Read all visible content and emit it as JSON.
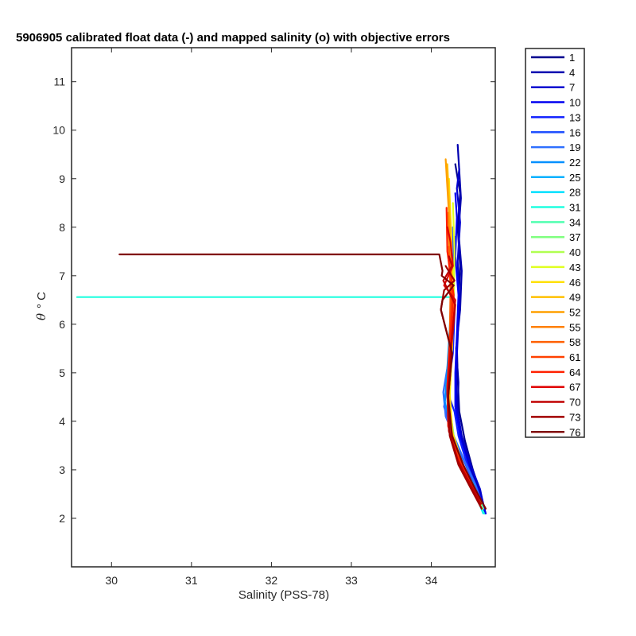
{
  "chart_data": {
    "type": "line",
    "title": "5906905 calibrated float data (-) and mapped salinity (o) with objective errors",
    "xlabel": "Salinity (PSS-78)",
    "ylabel_symbol": "θ",
    "ylabel_unit": "° C",
    "xlim": [
      29.5,
      34.8
    ],
    "ylim": [
      1,
      11.7
    ],
    "xticks": [
      30,
      31,
      32,
      33,
      34
    ],
    "yticks": [
      2,
      3,
      4,
      5,
      6,
      7,
      8,
      9,
      10,
      11
    ],
    "grid": false,
    "legend_position": "outside-right",
    "legend": [
      "1",
      "4",
      "7",
      "10",
      "13",
      "16",
      "19",
      "22",
      "25",
      "28",
      "31",
      "34",
      "37",
      "40",
      "43",
      "46",
      "49",
      "52",
      "55",
      "58",
      "61",
      "64",
      "67",
      "70",
      "73",
      "76"
    ],
    "colors": [
      "#00008f",
      "#0000b0",
      "#0000d0",
      "#0000f0",
      "#0f1fff",
      "#1f4fff",
      "#2f6fff",
      "#0090ff",
      "#00b0ff",
      "#00e0ff",
      "#20ffe0",
      "#50ffb0",
      "#80ff80",
      "#b0ff50",
      "#e0ff20",
      "#ffe000",
      "#ffc000",
      "#ffa000",
      "#ff8000",
      "#ff6000",
      "#ff4000",
      "#ff2000",
      "#e00000",
      "#c00000",
      "#a00000",
      "#800000"
    ],
    "series": [
      {
        "name": "1",
        "x": [
          34.68,
          34.62,
          34.52,
          34.42,
          34.35,
          34.33,
          34.32,
          34.34,
          34.36,
          34.33,
          34.36,
          34.3
        ],
        "y": [
          2.1,
          2.5,
          3.0,
          3.6,
          4.2,
          4.9,
          5.6,
          6.4,
          7.2,
          8.0,
          8.7,
          9.3
        ]
      },
      {
        "name": "4",
        "x": [
          34.67,
          34.6,
          34.5,
          34.4,
          34.33,
          34.34,
          34.31,
          34.36,
          34.38,
          34.34,
          34.37,
          34.33
        ],
        "y": [
          2.1,
          2.5,
          3.0,
          3.5,
          4.1,
          4.8,
          5.5,
          6.3,
          7.1,
          7.9,
          8.6,
          9.7
        ]
      },
      {
        "name": "7",
        "x": [
          34.66,
          34.61,
          34.49,
          34.38,
          34.32,
          34.31,
          34.33,
          34.35,
          34.33,
          34.36,
          34.32,
          34.35
        ],
        "y": [
          2.2,
          2.6,
          3.1,
          3.7,
          4.3,
          5.0,
          5.7,
          6.5,
          7.3,
          8.1,
          8.8,
          9.2
        ]
      },
      {
        "name": "10",
        "x": [
          34.68,
          34.59,
          34.48,
          34.37,
          34.3,
          34.3,
          34.32,
          34.34,
          34.3,
          34.32,
          34.3
        ],
        "y": [
          2.1,
          2.5,
          3.0,
          3.6,
          4.3,
          5.0,
          5.8,
          6.6,
          7.4,
          8.2,
          8.7
        ]
      },
      {
        "name": "13",
        "x": [
          34.65,
          34.58,
          34.45,
          34.34,
          34.29,
          34.2,
          34.27,
          34.29,
          34.27,
          34.3
        ],
        "y": [
          2.2,
          2.6,
          3.1,
          3.7,
          4.2,
          4.6,
          5.4,
          6.2,
          7.0,
          7.8
        ]
      },
      {
        "name": "16",
        "x": [
          34.64,
          34.56,
          34.43,
          34.3,
          34.16,
          34.22,
          34.25,
          34.27,
          34.28,
          34.27
        ],
        "y": [
          2.2,
          2.6,
          3.1,
          3.6,
          4.3,
          5.0,
          5.7,
          6.4,
          7.2,
          8.0
        ]
      },
      {
        "name": "19",
        "x": [
          34.63,
          34.55,
          34.41,
          34.28,
          34.18,
          34.15,
          34.23,
          34.26,
          34.27
        ],
        "y": [
          2.3,
          2.7,
          3.2,
          3.7,
          4.1,
          4.6,
          5.4,
          6.3,
          7.2
        ]
      },
      {
        "name": "22",
        "x": [
          34.64,
          34.54,
          34.4,
          34.27,
          34.17,
          34.2,
          34.23,
          34.25
        ],
        "y": [
          2.2,
          2.6,
          3.1,
          3.7,
          4.4,
          5.1,
          5.9,
          6.7
        ]
      },
      {
        "name": "25",
        "x": [
          34.63,
          34.53,
          34.38,
          34.26,
          34.2,
          34.22,
          34.24,
          34.26
        ],
        "y": [
          2.2,
          2.7,
          3.1,
          3.7,
          4.4,
          5.2,
          6.0,
          6.7
        ]
      },
      {
        "name": "28",
        "x": [
          34.65,
          34.55,
          34.4,
          34.28,
          34.21,
          34.22,
          34.24,
          34.25
        ],
        "y": [
          2.1,
          2.5,
          3.0,
          3.6,
          4.3,
          5.1,
          5.9,
          6.6
        ]
      },
      {
        "name": "31",
        "x": [
          34.66,
          34.55,
          34.4,
          34.28,
          34.21,
          34.22,
          34.24,
          34.25,
          34.26,
          29.57
        ],
        "y": [
          2.1,
          2.5,
          3.0,
          3.6,
          4.3,
          5.1,
          5.9,
          6.5,
          6.56,
          6.56
        ]
      },
      {
        "name": "34",
        "x": [
          34.65,
          34.54,
          34.39,
          34.28,
          34.22,
          34.23,
          34.25
        ],
        "y": [
          2.2,
          2.6,
          3.1,
          3.7,
          4.4,
          5.2,
          6.0
        ]
      },
      {
        "name": "37",
        "x": [
          34.64,
          34.53,
          34.39,
          34.28,
          34.22,
          34.24,
          34.26
        ],
        "y": [
          2.2,
          2.6,
          3.1,
          3.7,
          4.4,
          5.3,
          6.1
        ]
      },
      {
        "name": "40",
        "x": [
          34.63,
          34.52,
          34.38,
          34.27,
          34.22,
          34.25,
          34.27,
          34.28
        ],
        "y": [
          2.2,
          2.6,
          3.1,
          3.7,
          4.4,
          5.3,
          6.3,
          7.2
        ]
      },
      {
        "name": "43",
        "x": [
          34.63,
          34.52,
          34.38,
          34.27,
          34.23,
          34.26,
          34.28,
          34.29,
          34.27
        ],
        "y": [
          2.2,
          2.6,
          3.1,
          3.7,
          4.5,
          5.5,
          6.5,
          7.5,
          8.5
        ]
      },
      {
        "name": "46",
        "x": [
          34.62,
          34.51,
          34.37,
          34.26,
          34.23,
          34.26,
          34.27,
          34.25,
          34.22
        ],
        "y": [
          2.3,
          2.7,
          3.2,
          3.8,
          4.6,
          5.6,
          6.6,
          7.8,
          9.0
        ]
      },
      {
        "name": "49",
        "x": [
          34.62,
          34.5,
          34.36,
          34.25,
          34.22,
          34.25,
          34.26,
          34.24,
          34.2
        ],
        "y": [
          2.3,
          2.7,
          3.2,
          3.8,
          4.6,
          5.6,
          6.7,
          7.9,
          9.3
        ]
      },
      {
        "name": "52",
        "x": [
          34.61,
          34.49,
          34.35,
          34.24,
          34.21,
          34.24,
          34.25,
          34.23,
          34.18
        ],
        "y": [
          2.3,
          2.7,
          3.2,
          3.8,
          4.7,
          5.7,
          6.8,
          8.0,
          9.4
        ]
      },
      {
        "name": "55",
        "x": [
          34.62,
          34.49,
          34.34,
          34.23,
          34.21,
          34.24,
          34.24,
          34.22,
          34.21
        ],
        "y": [
          2.3,
          2.7,
          3.2,
          3.8,
          4.7,
          5.7,
          6.8,
          7.8,
          8.3
        ]
      },
      {
        "name": "58",
        "x": [
          34.6,
          34.48,
          34.33,
          34.22,
          34.2,
          34.23,
          34.24,
          34.22
        ],
        "y": [
          2.4,
          2.8,
          3.3,
          3.9,
          4.7,
          5.7,
          6.7,
          7.6
        ]
      },
      {
        "name": "61",
        "x": [
          34.59,
          34.47,
          34.33,
          34.22,
          34.2,
          34.23,
          34.26,
          34.21
        ],
        "y": [
          2.4,
          2.8,
          3.3,
          3.9,
          4.7,
          5.6,
          6.6,
          7.4
        ]
      },
      {
        "name": "64",
        "x": [
          34.6,
          34.47,
          34.32,
          34.21,
          34.2,
          34.23,
          34.28,
          34.2,
          34.19
        ],
        "y": [
          2.4,
          2.8,
          3.3,
          3.9,
          4.7,
          5.6,
          6.6,
          7.5,
          8.4
        ]
      },
      {
        "name": "67",
        "x": [
          34.61,
          34.48,
          34.33,
          34.22,
          34.2,
          34.24,
          34.3,
          34.16,
          34.27,
          34.24,
          34.2
        ],
        "y": [
          2.3,
          2.7,
          3.2,
          3.8,
          4.6,
          5.5,
          6.5,
          6.8,
          7.2,
          7.7,
          8.0
        ]
      },
      {
        "name": "70",
        "x": [
          34.62,
          34.49,
          34.33,
          34.22,
          34.21,
          34.25,
          34.3,
          34.15,
          34.26,
          34.22
        ],
        "y": [
          2.3,
          2.7,
          3.2,
          3.8,
          4.6,
          5.5,
          6.4,
          6.9,
          7.2,
          7.4
        ]
      },
      {
        "name": "73",
        "x": [
          34.63,
          34.5,
          34.34,
          34.23,
          34.21,
          34.26,
          34.12,
          34.16,
          34.29,
          34.18
        ],
        "y": [
          2.2,
          2.6,
          3.1,
          3.7,
          4.5,
          5.4,
          6.3,
          6.7,
          6.9,
          7.2
        ]
      },
      {
        "name": "76",
        "x": [
          34.68,
          34.55,
          34.4,
          34.26,
          34.21,
          34.26,
          34.12,
          34.14,
          34.28,
          34.13,
          34.14,
          34.1,
          30.1
        ],
        "y": [
          2.2,
          2.6,
          3.1,
          3.7,
          4.5,
          5.4,
          6.3,
          6.5,
          6.8,
          7.0,
          7.1,
          7.44,
          7.44
        ]
      }
    ]
  }
}
